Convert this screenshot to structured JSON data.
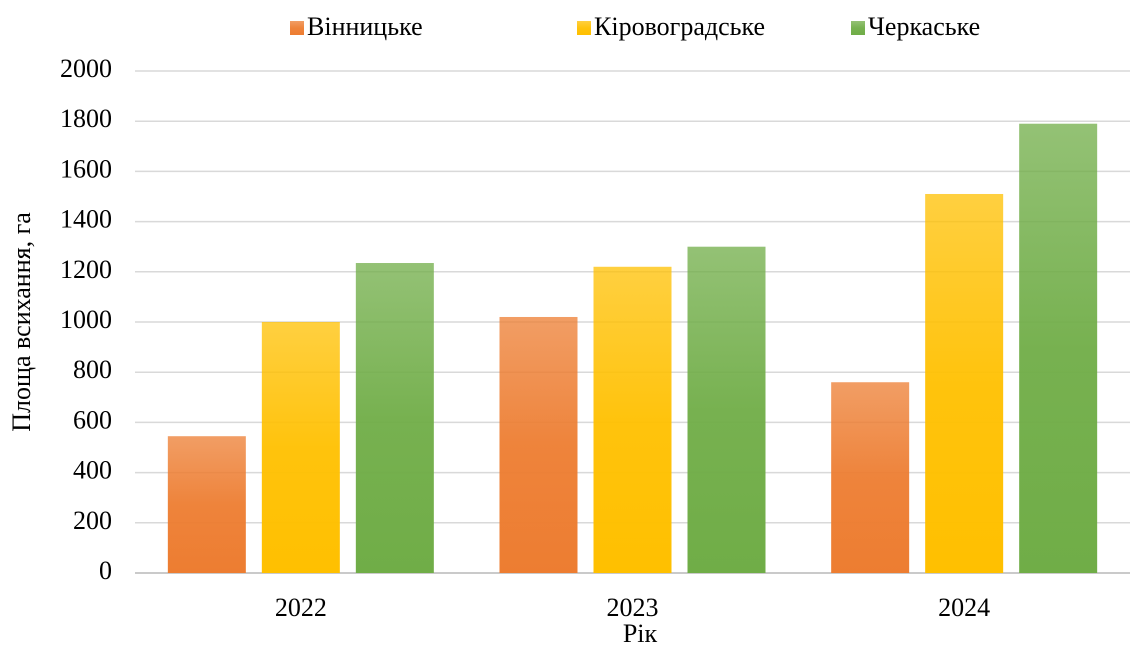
{
  "chart_data": {
    "type": "bar",
    "categories": [
      "2022",
      "2023",
      "2024"
    ],
    "series": [
      {
        "name": "Вінницьке",
        "color": "#ed7d31",
        "values": [
          545,
          1020,
          760
        ]
      },
      {
        "name": "Кіровоградське",
        "color": "#ffc000",
        "values": [
          1000,
          1220,
          1510
        ]
      },
      {
        "name": "Черкаське",
        "color": "#70ad47",
        "values": [
          1235,
          1300,
          1790
        ]
      }
    ],
    "x_label": "Рік",
    "y_label": "Площа всихання, га",
    "ylim": [
      0,
      2000
    ],
    "yticks": [
      0,
      200,
      400,
      600,
      800,
      1000,
      1200,
      1400,
      1600,
      1800,
      2000
    ],
    "grid": true,
    "legend": "top"
  }
}
